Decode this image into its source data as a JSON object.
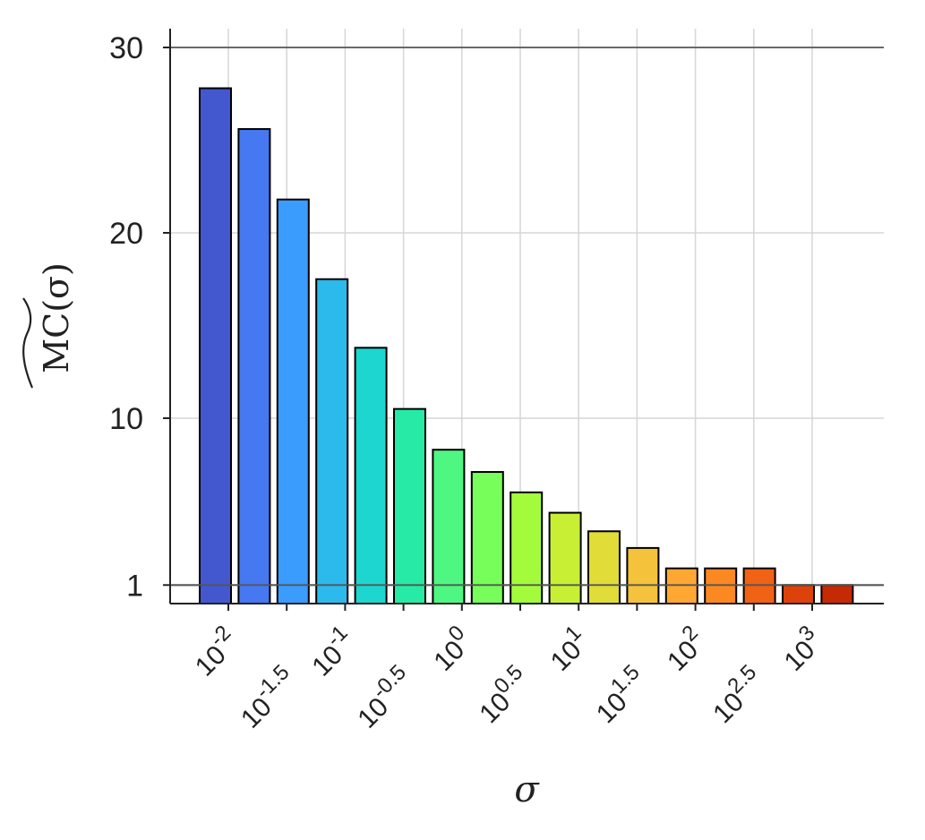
{
  "chart_data": {
    "type": "bar",
    "title": "",
    "xlabel": "σ",
    "ylabel": "MC(σ)",
    "ylabel_accent": "wide-hat",
    "y_ticks": [
      1,
      10,
      20,
      30
    ],
    "ylim": [
      0,
      30
    ],
    "x_scale": "log10",
    "x_ticks": [
      {
        "value": 0.01,
        "base": "10",
        "exp": "-2"
      },
      {
        "value": 0.0316,
        "base": "10",
        "exp": "-1.5"
      },
      {
        "value": 0.1,
        "base": "10",
        "exp": "-1"
      },
      {
        "value": 0.316,
        "base": "10",
        "exp": "-0.5"
      },
      {
        "value": 1,
        "base": "10",
        "exp": "0"
      },
      {
        "value": 3.16,
        "base": "10",
        "exp": "0.5"
      },
      {
        "value": 10,
        "base": "10",
        "exp": "1"
      },
      {
        "value": 31.6,
        "base": "10",
        "exp": "1.5"
      },
      {
        "value": 100,
        "base": "10",
        "exp": "2"
      },
      {
        "value": 316,
        "base": "10",
        "exp": "2.5"
      },
      {
        "value": 1000,
        "base": "10",
        "exp": "3"
      }
    ],
    "grid": true,
    "reference_line": 1,
    "values": [
      27.8,
      25.6,
      21.8,
      17.5,
      13.8,
      10.5,
      8.3,
      7.1,
      6.0,
      4.9,
      3.9,
      3.0,
      1.9,
      1.9,
      1.9,
      1.0,
      1.0
    ],
    "colors": [
      "#4358cf",
      "#4678f2",
      "#3a9cfc",
      "#2cbaec",
      "#1dd6cf",
      "#26eaa6",
      "#4ef782",
      "#78fe5a",
      "#a4fb3b",
      "#c8ef33",
      "#e1dc37",
      "#f5c23b",
      "#fea733",
      "#fc8822",
      "#f06214",
      "#dd420a",
      "#c52a04"
    ]
  }
}
